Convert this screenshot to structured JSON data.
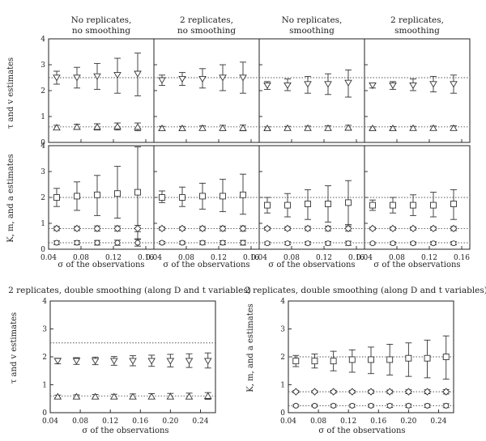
{
  "column_titles": [
    "No replicates, no smoothing",
    "2 replicates, no smoothing",
    "No replicates, smoothing",
    "2 replicates, smoothing"
  ],
  "bottom_titles": [
    "2 replicates, double smoothing (along D and t variables)",
    "2 replicates, double smoothing (along D and t variables)"
  ],
  "top_xlabel": "σ of the observations",
  "top_x_ticks": [
    "0.04",
    "0.08",
    "0.12",
    "0.16"
  ],
  "bottom_x_ticks": [
    "0.04",
    "0.08",
    "0.12",
    "0.16",
    "0.20",
    "0.24"
  ],
  "y_ticks": [
    "0",
    "1",
    "2",
    "3",
    "4"
  ],
  "ylabel_tau": "τ and v estimates",
  "ylabel_kma": "K, m, and a estimates",
  "chart_data": [
    {
      "type": "scatter",
      "panel": "row1-col1",
      "xlim": [
        0.04,
        0.17
      ],
      "ylim": [
        0,
        4
      ],
      "reference_lines": [
        2.5,
        0.6
      ],
      "series": [
        {
          "marker": "triangle-down",
          "x": [
            0.05,
            0.075,
            0.1,
            0.125,
            0.15
          ],
          "y": [
            2.5,
            2.5,
            2.55,
            2.6,
            2.65
          ],
          "err_low": [
            2.25,
            2.1,
            2.05,
            1.9,
            1.8
          ],
          "err_high": [
            2.75,
            2.9,
            3.05,
            3.25,
            3.45
          ]
        },
        {
          "marker": "triangle-up",
          "x": [
            0.05,
            0.075,
            0.1,
            0.125,
            0.15
          ],
          "y": [
            0.58,
            0.6,
            0.6,
            0.62,
            0.6
          ],
          "err_low": [
            0.5,
            0.5,
            0.48,
            0.48,
            0.45
          ],
          "err_high": [
            0.66,
            0.7,
            0.72,
            0.75,
            0.75
          ]
        }
      ]
    },
    {
      "type": "scatter",
      "panel": "row1-col2",
      "xlim": [
        0.04,
        0.17
      ],
      "ylim": [
        0,
        4
      ],
      "reference_lines": [
        2.5,
        0.6
      ],
      "series": [
        {
          "marker": "triangle-down",
          "x": [
            0.05,
            0.075,
            0.1,
            0.125,
            0.15
          ],
          "y": [
            2.4,
            2.45,
            2.45,
            2.5,
            2.5
          ],
          "err_low": [
            2.2,
            2.2,
            2.1,
            2.0,
            1.9
          ],
          "err_high": [
            2.6,
            2.7,
            2.85,
            3.0,
            3.1
          ]
        },
        {
          "marker": "triangle-up",
          "x": [
            0.05,
            0.075,
            0.1,
            0.125,
            0.15
          ],
          "y": [
            0.55,
            0.55,
            0.56,
            0.56,
            0.56
          ],
          "err_low": [
            0.48,
            0.48,
            0.47,
            0.46,
            0.45
          ],
          "err_high": [
            0.62,
            0.62,
            0.64,
            0.66,
            0.67
          ]
        }
      ]
    },
    {
      "type": "scatter",
      "panel": "row1-col3",
      "xlim": [
        0.04,
        0.17
      ],
      "ylim": [
        0,
        4
      ],
      "reference_lines": [
        2.5,
        0.6
      ],
      "series": [
        {
          "marker": "triangle-down",
          "x": [
            0.05,
            0.075,
            0.1,
            0.125,
            0.15
          ],
          "y": [
            2.2,
            2.2,
            2.25,
            2.25,
            2.3
          ],
          "err_low": [
            2.05,
            2.0,
            1.9,
            1.85,
            1.75
          ],
          "err_high": [
            2.35,
            2.45,
            2.55,
            2.65,
            2.8
          ]
        },
        {
          "marker": "triangle-up",
          "x": [
            0.05,
            0.075,
            0.1,
            0.125,
            0.15
          ],
          "y": [
            0.55,
            0.56,
            0.56,
            0.56,
            0.57
          ],
          "err_low": [
            0.5,
            0.5,
            0.49,
            0.48,
            0.47
          ],
          "err_high": [
            0.6,
            0.62,
            0.63,
            0.64,
            0.66
          ]
        }
      ]
    },
    {
      "type": "scatter",
      "panel": "row1-col4",
      "xlim": [
        0.04,
        0.17
      ],
      "ylim": [
        0,
        4
      ],
      "reference_lines": [
        2.5,
        0.6
      ],
      "series": [
        {
          "marker": "triangle-down",
          "x": [
            0.05,
            0.075,
            0.1,
            0.125,
            0.15
          ],
          "y": [
            2.2,
            2.2,
            2.2,
            2.25,
            2.25
          ],
          "err_low": [
            2.1,
            2.05,
            2.0,
            1.95,
            1.9
          ],
          "err_high": [
            2.3,
            2.35,
            2.45,
            2.55,
            2.6
          ]
        },
        {
          "marker": "triangle-up",
          "x": [
            0.05,
            0.075,
            0.1,
            0.125,
            0.15
          ],
          "y": [
            0.55,
            0.55,
            0.56,
            0.56,
            0.56
          ],
          "err_low": [
            0.5,
            0.5,
            0.49,
            0.49,
            0.48
          ],
          "err_high": [
            0.6,
            0.61,
            0.62,
            0.63,
            0.64
          ]
        }
      ]
    },
    {
      "type": "scatter",
      "panel": "row2-col1",
      "xlim": [
        0.04,
        0.17
      ],
      "ylim": [
        0,
        4
      ],
      "reference_lines": [
        2.0,
        0.8,
        0.25
      ],
      "series": [
        {
          "marker": "square",
          "x": [
            0.05,
            0.075,
            0.1,
            0.125,
            0.15
          ],
          "y": [
            2.0,
            2.05,
            2.1,
            2.15,
            2.2
          ],
          "err_low": [
            1.65,
            1.5,
            1.3,
            1.2,
            0.4
          ],
          "err_high": [
            2.35,
            2.6,
            2.85,
            3.2,
            3.95
          ]
        },
        {
          "marker": "diamond",
          "x": [
            0.05,
            0.075,
            0.1,
            0.125,
            0.15
          ],
          "y": [
            0.8,
            0.8,
            0.8,
            0.8,
            0.8
          ],
          "err_low": [
            0.72,
            0.72,
            0.7,
            0.7,
            0.68
          ],
          "err_high": [
            0.88,
            0.88,
            0.9,
            0.9,
            0.92
          ]
        },
        {
          "marker": "circle",
          "x": [
            0.05,
            0.075,
            0.1,
            0.125,
            0.15
          ],
          "y": [
            0.25,
            0.25,
            0.25,
            0.25,
            0.25
          ],
          "err_low": [
            0.18,
            0.17,
            0.16,
            0.15,
            0.12
          ],
          "err_high": [
            0.32,
            0.33,
            0.34,
            0.35,
            0.38
          ]
        }
      ]
    },
    {
      "type": "scatter",
      "panel": "row2-col2",
      "xlim": [
        0.04,
        0.17
      ],
      "ylim": [
        0,
        4
      ],
      "reference_lines": [
        2.0,
        0.8,
        0.25
      ],
      "series": [
        {
          "marker": "square",
          "x": [
            0.05,
            0.075,
            0.1,
            0.125,
            0.15
          ],
          "y": [
            2.0,
            2.0,
            2.05,
            2.05,
            2.1
          ],
          "err_low": [
            1.8,
            1.65,
            1.55,
            1.45,
            1.35
          ],
          "err_high": [
            2.25,
            2.4,
            2.55,
            2.7,
            2.9
          ]
        },
        {
          "marker": "diamond",
          "x": [
            0.05,
            0.075,
            0.1,
            0.125,
            0.15
          ],
          "y": [
            0.8,
            0.8,
            0.8,
            0.8,
            0.8
          ],
          "err_low": [
            0.74,
            0.73,
            0.72,
            0.71,
            0.7
          ],
          "err_high": [
            0.86,
            0.87,
            0.88,
            0.89,
            0.9
          ]
        },
        {
          "marker": "circle",
          "x": [
            0.05,
            0.075,
            0.1,
            0.125,
            0.15
          ],
          "y": [
            0.25,
            0.25,
            0.25,
            0.25,
            0.25
          ],
          "err_low": [
            0.2,
            0.19,
            0.18,
            0.17,
            0.16
          ],
          "err_high": [
            0.3,
            0.31,
            0.32,
            0.33,
            0.34
          ]
        }
      ]
    },
    {
      "type": "scatter",
      "panel": "row2-col3",
      "xlim": [
        0.04,
        0.17
      ],
      "ylim": [
        0,
        4
      ],
      "reference_lines": [
        2.0,
        0.8,
        0.25
      ],
      "series": [
        {
          "marker": "square",
          "x": [
            0.05,
            0.075,
            0.1,
            0.125,
            0.15
          ],
          "y": [
            1.7,
            1.7,
            1.75,
            1.75,
            1.8
          ],
          "err_low": [
            1.4,
            1.25,
            1.15,
            1.05,
            0.95
          ],
          "err_high": [
            2.0,
            2.15,
            2.3,
            2.45,
            2.65
          ]
        },
        {
          "marker": "diamond",
          "x": [
            0.05,
            0.075,
            0.1,
            0.125,
            0.15
          ],
          "y": [
            0.8,
            0.8,
            0.8,
            0.8,
            0.8
          ],
          "err_low": [
            0.74,
            0.73,
            0.72,
            0.71,
            0.7
          ],
          "err_high": [
            0.86,
            0.87,
            0.88,
            0.89,
            0.9
          ]
        },
        {
          "marker": "circle",
          "x": [
            0.05,
            0.075,
            0.1,
            0.125,
            0.15
          ],
          "y": [
            0.23,
            0.23,
            0.23,
            0.23,
            0.23
          ],
          "err_low": [
            0.18,
            0.17,
            0.17,
            0.16,
            0.15
          ],
          "err_high": [
            0.28,
            0.29,
            0.29,
            0.3,
            0.31
          ]
        }
      ]
    },
    {
      "type": "scatter",
      "panel": "row2-col4",
      "xlim": [
        0.04,
        0.17
      ],
      "ylim": [
        0,
        4
      ],
      "reference_lines": [
        2.0,
        0.8,
        0.25
      ],
      "series": [
        {
          "marker": "square",
          "x": [
            0.05,
            0.075,
            0.1,
            0.125,
            0.15
          ],
          "y": [
            1.7,
            1.7,
            1.7,
            1.7,
            1.75
          ],
          "err_low": [
            1.5,
            1.4,
            1.3,
            1.25,
            1.15
          ],
          "err_high": [
            1.9,
            2.0,
            2.1,
            2.2,
            2.3
          ]
        },
        {
          "marker": "diamond",
          "x": [
            0.05,
            0.075,
            0.1,
            0.125,
            0.15
          ],
          "y": [
            0.8,
            0.8,
            0.8,
            0.8,
            0.8
          ],
          "err_low": [
            0.75,
            0.74,
            0.74,
            0.73,
            0.72
          ],
          "err_high": [
            0.85,
            0.86,
            0.86,
            0.87,
            0.88
          ]
        },
        {
          "marker": "circle",
          "x": [
            0.05,
            0.075,
            0.1,
            0.125,
            0.15
          ],
          "y": [
            0.23,
            0.23,
            0.23,
            0.23,
            0.23
          ],
          "err_low": [
            0.19,
            0.18,
            0.18,
            0.17,
            0.17
          ],
          "err_high": [
            0.27,
            0.28,
            0.28,
            0.29,
            0.29
          ]
        }
      ]
    },
    {
      "type": "scatter",
      "panel": "bottom-left",
      "xlim": [
        0.04,
        0.26
      ],
      "ylim": [
        0,
        4
      ],
      "reference_lines": [
        2.5,
        0.6
      ],
      "series": [
        {
          "marker": "triangle-down",
          "x": [
            0.05,
            0.075,
            0.1,
            0.125,
            0.15,
            0.175,
            0.2,
            0.225,
            0.25
          ],
          "y": [
            1.85,
            1.85,
            1.85,
            1.85,
            1.85,
            1.85,
            1.85,
            1.85,
            1.85
          ],
          "err_low": [
            1.75,
            1.73,
            1.72,
            1.7,
            1.68,
            1.66,
            1.64,
            1.62,
            1.6
          ],
          "err_high": [
            1.95,
            1.97,
            1.99,
            2.01,
            2.04,
            2.06,
            2.09,
            2.11,
            2.14
          ]
        },
        {
          "marker": "triangle-up",
          "x": [
            0.05,
            0.075,
            0.1,
            0.125,
            0.15,
            0.175,
            0.2,
            0.225,
            0.25
          ],
          "y": [
            0.58,
            0.58,
            0.58,
            0.58,
            0.58,
            0.58,
            0.58,
            0.58,
            0.6
          ],
          "err_low": [
            0.53,
            0.53,
            0.52,
            0.52,
            0.51,
            0.5,
            0.5,
            0.49,
            0.48
          ],
          "err_high": [
            0.63,
            0.64,
            0.65,
            0.66,
            0.67,
            0.68,
            0.69,
            0.7,
            0.72
          ]
        }
      ]
    },
    {
      "type": "scatter",
      "panel": "bottom-right",
      "xlim": [
        0.04,
        0.26
      ],
      "ylim": [
        0,
        4
      ],
      "reference_lines": [
        2.0,
        0.75,
        0.25
      ],
      "series": [
        {
          "marker": "square",
          "x": [
            0.05,
            0.075,
            0.1,
            0.125,
            0.15,
            0.175,
            0.2,
            0.225,
            0.25
          ],
          "y": [
            1.85,
            1.85,
            1.85,
            1.9,
            1.9,
            1.9,
            1.95,
            1.95,
            2.0
          ],
          "err_low": [
            1.65,
            1.6,
            1.5,
            1.45,
            1.4,
            1.35,
            1.3,
            1.25,
            1.2
          ],
          "err_high": [
            2.05,
            2.1,
            2.2,
            2.25,
            2.35,
            2.45,
            2.5,
            2.6,
            2.75
          ]
        },
        {
          "marker": "diamond",
          "x": [
            0.05,
            0.075,
            0.1,
            0.125,
            0.15,
            0.175,
            0.2,
            0.225,
            0.25
          ],
          "y": [
            0.75,
            0.75,
            0.75,
            0.75,
            0.75,
            0.75,
            0.75,
            0.75,
            0.75
          ],
          "err_low": [
            0.71,
            0.71,
            0.7,
            0.7,
            0.69,
            0.69,
            0.68,
            0.68,
            0.67
          ],
          "err_high": [
            0.79,
            0.79,
            0.8,
            0.8,
            0.81,
            0.81,
            0.82,
            0.82,
            0.83
          ]
        },
        {
          "marker": "circle",
          "x": [
            0.05,
            0.075,
            0.1,
            0.125,
            0.15,
            0.175,
            0.2,
            0.225,
            0.25
          ],
          "y": [
            0.25,
            0.25,
            0.25,
            0.25,
            0.25,
            0.25,
            0.25,
            0.25,
            0.25
          ],
          "err_low": [
            0.21,
            0.21,
            0.2,
            0.2,
            0.2,
            0.19,
            0.19,
            0.19,
            0.18
          ],
          "err_high": [
            0.29,
            0.29,
            0.3,
            0.3,
            0.3,
            0.31,
            0.31,
            0.31,
            0.32
          ]
        }
      ]
    }
  ]
}
